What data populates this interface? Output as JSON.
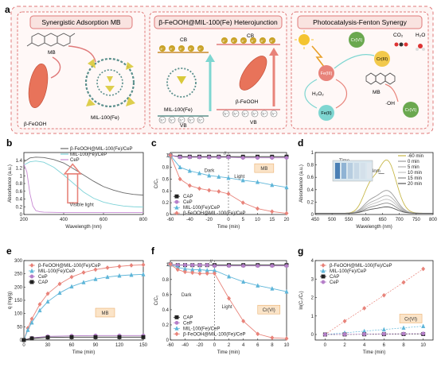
{
  "schematic": {
    "panel_label": "a",
    "box1_title": "Synergistic Adsorption MB",
    "box2_title": "β-FeOOH@MIL-100(Fe) Heterojunction",
    "box3_title": "Photocatalysis-Fenton Synergy",
    "mb_label": "MB",
    "feooh_label": "β-FeOOH",
    "mil_label": "MIL-100(Fe)",
    "cb_label": "CB",
    "vb_label": "VB",
    "electron": "e⁻",
    "hole": "h⁺",
    "fe3_label": "Fe(III)",
    "fe2_label": "Fe(II)",
    "h2o2_label": "H₂O₂",
    "oh_label": "·OH",
    "cr6_label": "Cr(VI)",
    "cr3_label": "Cr(III)",
    "co2_label": "CO₂",
    "h2o_label": "H₂O",
    "colors": {
      "box_border": "#e07a7a",
      "feooh": "#e8735a",
      "mof": "#d9c93a",
      "cr_green": "#6aa84f",
      "arrow_teal": "#7ed6d1"
    }
  },
  "chart_data": [
    {
      "id": "b",
      "type": "line",
      "panel_label": "b",
      "xlabel": "Wavelength (nm)",
      "ylabel": "Absorbance (a.u.)",
      "xlim": [
        200,
        800
      ],
      "ylim": [
        0,
        1.6
      ],
      "xticks": [
        200,
        400,
        600,
        800
      ],
      "yticks": [
        0.0,
        0.2,
        0.4,
        0.6,
        0.8,
        1.0,
        1.2,
        1.4
      ],
      "annotation": "Visible light",
      "legend_position": "top-right",
      "series": [
        {
          "name": "β-FeOOH@MIL-100(Fe)/CeP",
          "color": "#6a6a6a",
          "x": [
            200,
            230,
            260,
            300,
            350,
            400,
            450,
            500,
            550,
            600,
            650,
            700,
            750,
            800
          ],
          "y": [
            1.36,
            1.46,
            1.48,
            1.47,
            1.42,
            1.33,
            1.18,
            1.02,
            0.86,
            0.72,
            0.63,
            0.56,
            0.52,
            0.5
          ]
        },
        {
          "name": "MIL-100(Fe)/CeP",
          "color": "#7fd3d8",
          "x": [
            200,
            230,
            260,
            300,
            350,
            400,
            450,
            500,
            550,
            600,
            650,
            700,
            750,
            800
          ],
          "y": [
            1.28,
            1.36,
            1.38,
            1.35,
            1.22,
            1.02,
            0.8,
            0.58,
            0.42,
            0.32,
            0.26,
            0.22,
            0.2,
            0.19
          ]
        },
        {
          "name": "CeP",
          "color": "#c88ad4",
          "x": [
            200,
            215,
            230,
            245,
            260,
            280,
            300,
            400,
            500,
            600,
            700,
            800
          ],
          "y": [
            1.3,
            1.1,
            0.55,
            0.22,
            0.1,
            0.07,
            0.06,
            0.05,
            0.05,
            0.05,
            0.05,
            0.05
          ]
        }
      ]
    },
    {
      "id": "c",
      "type": "line",
      "panel_label": "c",
      "xlabel": "Time (min)",
      "ylabel": "C/C₀",
      "xlim": [
        -60,
        20
      ],
      "ylim": [
        0,
        1.05
      ],
      "xticks": [
        -60,
        -40,
        -20,
        0,
        5,
        10,
        15,
        20
      ],
      "yticks": [
        0.0,
        0.2,
        0.4,
        0.6,
        0.8,
        1.0
      ],
      "annotations": [
        "Dark",
        "Light",
        "MB"
      ],
      "legend_position": "bottom-left",
      "series": [
        {
          "name": "CAP",
          "color": "#222222",
          "marker": "square",
          "x": [
            -60,
            -50,
            -40,
            -30,
            -20,
            -10,
            0,
            5,
            10,
            15,
            20
          ],
          "y": [
            1.0,
            0.98,
            0.98,
            0.98,
            0.98,
            0.98,
            0.98,
            0.98,
            0.98,
            0.98,
            0.98
          ]
        },
        {
          "name": "CeP",
          "color": "#b57fc9",
          "marker": "circle",
          "x": [
            -60,
            -50,
            -40,
            -30,
            -20,
            -10,
            0,
            5,
            10,
            15,
            20
          ],
          "y": [
            1.0,
            0.97,
            0.97,
            0.97,
            0.97,
            0.97,
            0.97,
            0.96,
            0.96,
            0.96,
            0.96
          ]
        },
        {
          "name": "MIL-100(Fe)/CeP",
          "color": "#5fb6d9",
          "marker": "triangle",
          "x": [
            -60,
            -50,
            -40,
            -30,
            -20,
            -10,
            0,
            5,
            10,
            15,
            20
          ],
          "y": [
            1.0,
            0.8,
            0.74,
            0.7,
            0.66,
            0.64,
            0.62,
            0.58,
            0.55,
            0.5,
            0.46
          ]
        },
        {
          "name": "β-FeOOH@MIL-100(Fe)/CeP",
          "color": "#e8837a",
          "marker": "diamond",
          "x": [
            -60,
            -50,
            -40,
            -30,
            -20,
            -10,
            0,
            5,
            10,
            15,
            20
          ],
          "y": [
            1.0,
            0.6,
            0.49,
            0.44,
            0.41,
            0.39,
            0.35,
            0.2,
            0.1,
            0.05,
            0.02
          ]
        }
      ]
    },
    {
      "id": "d",
      "type": "line",
      "panel_label": "d",
      "xlabel": "Wavelength (nm)",
      "ylabel": "Absorbance (a.u.)",
      "xlim": [
        450,
        800
      ],
      "ylim": [
        0,
        1.0
      ],
      "xticks": [
        450,
        500,
        550,
        600,
        650,
        700,
        750,
        800
      ],
      "yticks": [
        0.0,
        0.2,
        0.4,
        0.6,
        0.8,
        1.0
      ],
      "annotations": [
        "Time",
        "664nm"
      ],
      "legend_position": "top-right",
      "series": [
        {
          "name": "-60 min",
          "color": "#c8b84a",
          "peak": 0.84
        },
        {
          "name": "0 min",
          "color": "#9a9a9a",
          "peak": 0.36
        },
        {
          "name": "5 min",
          "color": "#b0b0b0",
          "peak": 0.28
        },
        {
          "name": "10 min",
          "color": "#c0c0c0",
          "peak": 0.22
        },
        {
          "name": "15 min",
          "color": "#8a8a8a",
          "peak": 0.16
        },
        {
          "name": "20 min",
          "color": "#555555",
          "peak": 0.1
        }
      ]
    },
    {
      "id": "e",
      "type": "line",
      "panel_label": "e",
      "xlabel": "Time (min)",
      "ylabel": "q (mg/g)",
      "xlim": [
        0,
        150
      ],
      "ylim": [
        0,
        300
      ],
      "xticks": [
        0,
        30,
        60,
        90,
        120,
        150
      ],
      "yticks": [
        0,
        50,
        100,
        150,
        200,
        250,
        300
      ],
      "annotations": [
        "MB"
      ],
      "legend_position": "top-left",
      "series": [
        {
          "name": "β-FeOOH@MIL-100(Fe)/CeP",
          "color": "#e8837a",
          "marker": "diamond",
          "x": [
            0,
            5,
            10,
            20,
            30,
            45,
            60,
            75,
            90,
            105,
            120,
            135,
            150
          ],
          "y": [
            0,
            45,
            80,
            135,
            175,
            212,
            238,
            255,
            266,
            273,
            278,
            282,
            284
          ]
        },
        {
          "name": "MIL-100(Fe)/CeP",
          "color": "#5fb6d9",
          "marker": "triangle",
          "x": [
            0,
            5,
            10,
            20,
            30,
            45,
            60,
            75,
            90,
            105,
            120,
            135,
            150
          ],
          "y": [
            0,
            38,
            66,
            112,
            145,
            178,
            202,
            218,
            230,
            238,
            243,
            246,
            248
          ]
        },
        {
          "name": "CeP",
          "color": "#b57fc9",
          "marker": "circle",
          "x": [
            0,
            10,
            30,
            60,
            90,
            120,
            150
          ],
          "y": [
            0,
            8,
            14,
            16,
            17,
            17,
            17
          ]
        },
        {
          "name": "CAP",
          "color": "#222222",
          "marker": "square",
          "x": [
            0,
            10,
            30,
            60,
            90,
            120,
            150
          ],
          "y": [
            0,
            6,
            10,
            11,
            11,
            11,
            11
          ]
        }
      ]
    },
    {
      "id": "f",
      "type": "line",
      "panel_label": "f",
      "xlabel": "Time (min)",
      "ylabel": "C/C₀",
      "xlim": [
        -60,
        10
      ],
      "ylim": [
        0,
        1.05
      ],
      "xticks": [
        -60,
        -40,
        -20,
        0,
        2,
        4,
        6,
        8,
        10
      ],
      "yticks": [
        0.0,
        0.2,
        0.4,
        0.6,
        0.8,
        1.0
      ],
      "annotations": [
        "Dark",
        "Light",
        "Cr(VI)"
      ],
      "legend_position": "bottom-left",
      "series": [
        {
          "name": "CAP",
          "color": "#222222",
          "marker": "square",
          "x": [
            -60,
            -50,
            -40,
            -30,
            -20,
            -10,
            0,
            2,
            4,
            6,
            8,
            10
          ],
          "y": [
            1.0,
            0.99,
            0.99,
            0.99,
            0.99,
            0.99,
            0.99,
            0.99,
            0.99,
            0.99,
            0.99,
            0.99
          ]
        },
        {
          "name": "CeP",
          "color": "#b57fc9",
          "marker": "circle",
          "x": [
            -60,
            -50,
            -40,
            -30,
            -20,
            -10,
            0,
            2,
            4,
            6,
            8,
            10
          ],
          "y": [
            1.0,
            0.99,
            0.99,
            0.99,
            0.99,
            0.99,
            0.98,
            0.98,
            0.98,
            0.98,
            0.98,
            0.98
          ]
        },
        {
          "name": "MIL-100(Fe)/CeP",
          "color": "#5fb6d9",
          "marker": "triangle",
          "x": [
            -60,
            -50,
            -40,
            -30,
            -20,
            -10,
            0,
            2,
            4,
            6,
            8,
            10
          ],
          "y": [
            1.0,
            0.96,
            0.94,
            0.93,
            0.93,
            0.92,
            0.92,
            0.84,
            0.77,
            0.72,
            0.68,
            0.64
          ]
        },
        {
          "name": "β-FeOOH@MIL-100(Fe)/CeP",
          "color": "#e8837a",
          "marker": "diamond",
          "x": [
            -60,
            -50,
            -40,
            -30,
            -20,
            -10,
            0,
            2,
            4,
            6,
            8,
            10
          ],
          "y": [
            1.0,
            0.93,
            0.9,
            0.89,
            0.88,
            0.88,
            0.88,
            0.55,
            0.25,
            0.08,
            0.03,
            0.02
          ]
        }
      ]
    },
    {
      "id": "g",
      "type": "scatter",
      "panel_label": "g",
      "xlabel": "Time (min)",
      "ylabel": "ln(C₀/Cₜ)",
      "xlim": [
        -1,
        11
      ],
      "ylim": [
        -0.3,
        4.0
      ],
      "xticks": [
        0,
        2,
        4,
        6,
        8,
        10
      ],
      "yticks": [
        0,
        1,
        2,
        3,
        4
      ],
      "annotations": [
        "Cr(VI)"
      ],
      "legend_position": "top-left",
      "series": [
        {
          "name": "β-FeOOH@MIL-100(Fe)/CeP",
          "color": "#e8837a",
          "marker": "diamond",
          "x": [
            0,
            2,
            4,
            6,
            8,
            10
          ],
          "y": [
            0,
            0.72,
            1.42,
            2.12,
            2.82,
            3.55
          ]
        },
        {
          "name": "MIL-100(Fe)/CeP",
          "color": "#5fb6d9",
          "marker": "triangle",
          "x": [
            0,
            2,
            4,
            6,
            8,
            10
          ],
          "y": [
            0,
            0.09,
            0.18,
            0.27,
            0.36,
            0.45
          ]
        },
        {
          "name": "CAP",
          "color": "#222222",
          "marker": "square",
          "x": [
            0,
            2,
            4,
            6,
            8,
            10
          ],
          "y": [
            0,
            0.005,
            0.01,
            0.015,
            0.02,
            0.025
          ]
        },
        {
          "name": "CeP",
          "color": "#b57fc9",
          "marker": "circle",
          "x": [
            0,
            2,
            4,
            6,
            8,
            10
          ],
          "y": [
            0,
            0.01,
            0.02,
            0.03,
            0.04,
            0.05
          ]
        }
      ]
    }
  ]
}
